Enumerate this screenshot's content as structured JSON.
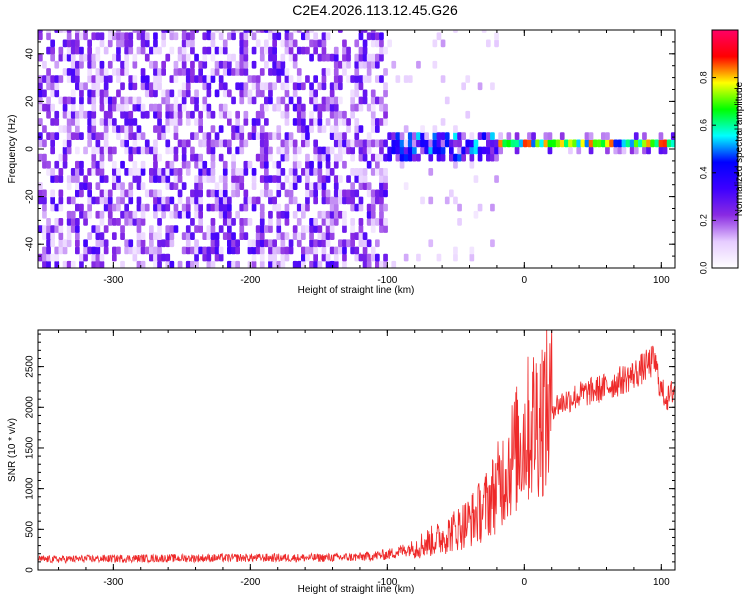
{
  "title": "C2E4.2026.113.12.45.G26",
  "chart_data": [
    {
      "type": "heatmap",
      "title": "C2E4.2026.113.12.45.G26",
      "xlabel": "Height of straight line (km)",
      "ylabel": "Frequency (Hz)",
      "xlim": [
        -355,
        110
      ],
      "ylim": [
        -50,
        50
      ],
      "xticks": [
        -300,
        -200,
        -100,
        0,
        100
      ],
      "yticks": [
        -40,
        -20,
        0,
        20,
        40
      ],
      "colorbar": {
        "label": "Normalized spectral amplitude",
        "range": [
          0,
          1
        ],
        "ticks": [
          0.0,
          0.2,
          0.4,
          0.6,
          0.8
        ],
        "colormap": [
          "#ffffff",
          "#e6ccff",
          "#8a2be2",
          "#3d00ff",
          "#0000ff",
          "#00ffff",
          "#00ff00",
          "#ffff00",
          "#ff0000",
          "#ff0066"
        ]
      },
      "description_regions": [
        {
          "x_range": [
            -355,
            -100
          ],
          "y_range": [
            -50,
            50
          ],
          "level": "noise 0.1-0.3"
        },
        {
          "x_range": [
            -140,
            -20
          ],
          "y_range": [
            -8,
            8
          ],
          "level": "signal 0.2-0.6"
        },
        {
          "x_range": [
            -20,
            110
          ],
          "y_range": [
            -2,
            4
          ],
          "level": "signal 0.5-0.9, center ~1.5 Hz"
        }
      ]
    },
    {
      "type": "line",
      "xlabel": "Height of straight line (km)",
      "ylabel": "SNR (10 * v/v)",
      "xlim": [
        -355,
        110
      ],
      "ylim": [
        0,
        2950
      ],
      "xticks": [
        -300,
        -200,
        -100,
        0,
        100
      ],
      "yticks": [
        0,
        500,
        1000,
        1500,
        2000,
        2500
      ],
      "series": [
        {
          "name": "SNR",
          "color": "#ff0000",
          "trend": {
            "x": [
              -355,
              -300,
              -200,
              -150,
              -120,
              -100,
              -80,
              -60,
              -50,
              -40,
              -30,
              -20,
              -10,
              0,
              10,
              20,
              40,
              60,
              80,
              95,
              100,
              105,
              110
            ],
            "y": [
              130,
              140,
              150,
              150,
              160,
              190,
              280,
              400,
              500,
              600,
              750,
              1000,
              1350,
              1650,
              1900,
              2000,
              2150,
              2250,
              2400,
              2580,
              2200,
              2100,
              2250
            ]
          }
        }
      ]
    }
  ]
}
